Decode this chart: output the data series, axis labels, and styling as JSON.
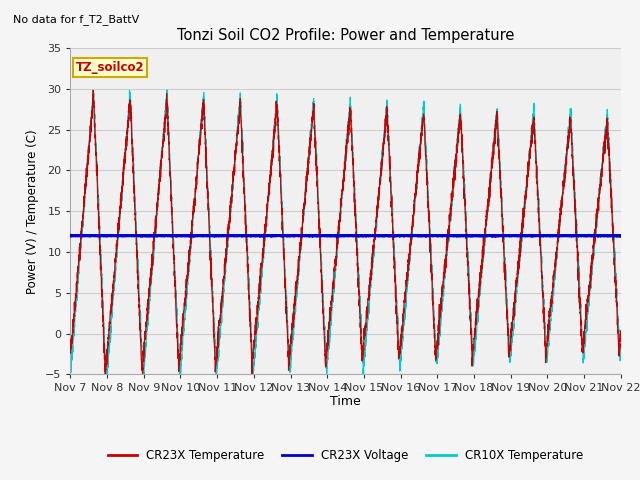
{
  "title": "Tonzi Soil CO2 Profile: Power and Temperature",
  "subtitle": "No data for f_T2_BattV",
  "ylabel": "Power (V) / Temperature (C)",
  "xlabel": "Time",
  "ylim": [
    -5,
    35
  ],
  "yticks": [
    -5,
    0,
    5,
    10,
    15,
    20,
    25,
    30,
    35
  ],
  "n_days": 15,
  "xtick_labels": [
    "Nov 7",
    "Nov 8",
    "Nov 9",
    "Nov 10",
    "Nov 11",
    "Nov 12",
    "Nov 13",
    "Nov 14",
    "Nov 15",
    "Nov 16",
    "Nov 17",
    "Nov 18",
    "Nov 19",
    "Nov 20",
    "Nov 21",
    "Nov 22"
  ],
  "voltage_value": 12.0,
  "fig_bg_color": "#f5f5f5",
  "plot_bg_color": "#f0f0f0",
  "cr23x_color": "#cc0000",
  "voltage_color": "#0000cc",
  "cr10x_color": "#00cccc",
  "legend_label_cr23x": "CR23X Temperature",
  "legend_label_voltage": "CR23X Voltage",
  "legend_label_cr10x": "CR10X Temperature",
  "annotation_text": "TZ_soilco2",
  "annotation_fg": "#cc0000",
  "annotation_bg": "#ffffcc",
  "annotation_border": "#ccaa00",
  "grid_color": "#cccccc"
}
